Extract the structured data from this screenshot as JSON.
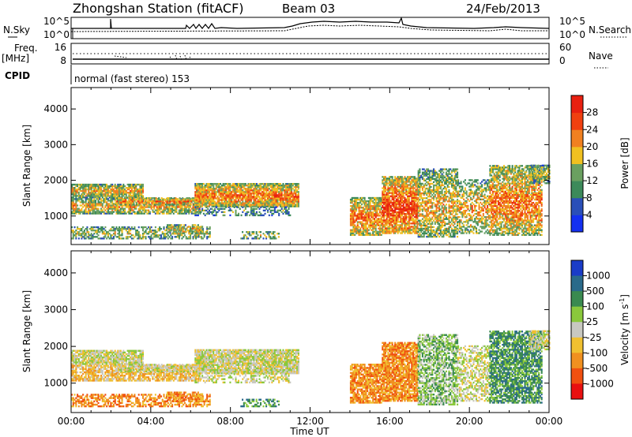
{
  "header": {
    "station_title": "Zhongshan Station (fitACF)",
    "beam": "Beam 03",
    "date": "24/Feb/2013"
  },
  "top_panels": {
    "nsky_label": "N.Sky",
    "nsky_ticks": [
      "10^5",
      "10^0"
    ],
    "nsearch_label": "N.Search",
    "nsearch_ticks": [
      "10^5",
      "10^0"
    ],
    "freq_label": "Freq.",
    "freq_unit": "[MHz]",
    "freq_ticks": [
      "16",
      "8"
    ],
    "nave_label": "Nave",
    "nave_ticks": [
      "60",
      "0"
    ],
    "cpid_label": "CPID",
    "cpid_text": "normal (fast stereo) 153"
  },
  "colors": {
    "power_scale": [
      "#1430f0",
      "#2a4fb8",
      "#3c8a5a",
      "#6aa060",
      "#f0c020",
      "#f08020",
      "#f04010",
      "#e82010"
    ],
    "velocity_scale": [
      "#1a3cc8",
      "#2a6a8a",
      "#3a8a50",
      "#8ac83c",
      "#c8c8c0",
      "#f0c030",
      "#f09020",
      "#f05010",
      "#e81010"
    ]
  },
  "chart_data": [
    {
      "type": "heatmap",
      "panel": "power",
      "ylabel": "Slant Range [km]",
      "yticks": [
        1000,
        2000,
        3000,
        4000
      ],
      "ylim": [
        200,
        4600
      ],
      "xlim": [
        0,
        24
      ],
      "colorbar_label": "Power [dB]",
      "colorbar_ticks": [
        "4",
        "8",
        "12",
        "16",
        "20",
        "24",
        "28"
      ],
      "colorbar_range": [
        0,
        32
      ]
    },
    {
      "type": "heatmap",
      "panel": "velocity",
      "ylabel": "Slant Range [km]",
      "yticks": [
        1000,
        2000,
        3000,
        4000
      ],
      "ylim": [
        200,
        4600
      ],
      "xlim": [
        0,
        24
      ],
      "xlabel": "Time UT",
      "xticks": [
        "00:00",
        "04:00",
        "08:00",
        "12:00",
        "16:00",
        "20:00",
        "00:00"
      ],
      "colorbar_label": "Velocity [m s",
      "colorbar_unit_sup": "-1",
      "colorbar_unit_close": "]",
      "colorbar_ticks": [
        "1000",
        "500",
        "100",
        "25",
        "-25",
        "-100",
        "-500",
        "-1000"
      ]
    }
  ]
}
